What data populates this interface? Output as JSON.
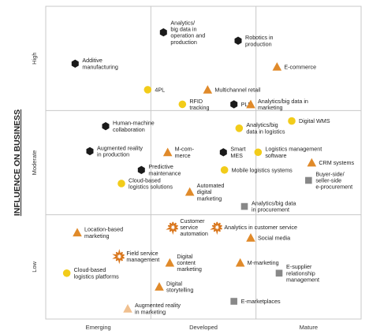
{
  "chart_data": {
    "type": "scatter",
    "ylabel": "INFLUENCE ON BUSINESS",
    "xlabel": "",
    "x_ticks": [
      "Emerging",
      "Developed",
      "Mature"
    ],
    "y_ticks": [
      "High",
      "Moderate",
      "Low"
    ],
    "colors": {
      "hexagon": "#1a1a1a",
      "circle": "#f2cc1a",
      "triangle": "#e08a2a",
      "triangle_light": "#f0c08f",
      "star": "#d9761c",
      "square": "#888888",
      "grid": "#c8c8c8"
    },
    "points": [
      {
        "label": [
          "Additive",
          "manufacturing"
        ],
        "shape": "hexagon",
        "x": 0.28,
        "y": 2.45
      },
      {
        "label": [
          "Analytics/",
          "big data in",
          "operation and",
          "production"
        ],
        "shape": "hexagon",
        "x": 1.12,
        "y": 2.75
      },
      {
        "label": [
          "Robotics in",
          "production"
        ],
        "shape": "hexagon",
        "x": 1.83,
        "y": 2.67
      },
      {
        "label": [
          "E-commerce"
        ],
        "shape": "triangle",
        "x": 2.2,
        "y": 2.42
      },
      {
        "label": [
          "4PL"
        ],
        "shape": "circle",
        "x": 0.97,
        "y": 2.2
      },
      {
        "label": [
          "Multichannel retail"
        ],
        "shape": "triangle",
        "x": 1.54,
        "y": 2.2
      },
      {
        "label": [
          "RFID",
          "tracking"
        ],
        "shape": "circle",
        "x": 1.3,
        "y": 2.06
      },
      {
        "label": [
          "PLM"
        ],
        "shape": "hexagon",
        "x": 1.79,
        "y": 2.06
      },
      {
        "label": [
          "Analytics/big data in",
          "marketing"
        ],
        "shape": "triangle",
        "x": 1.95,
        "y": 2.06
      },
      {
        "label": [
          "Digital WMS"
        ],
        "shape": "circle",
        "x": 2.34,
        "y": 1.9
      },
      {
        "label": [
          "Human-machine",
          "collaboration"
        ],
        "shape": "hexagon",
        "x": 0.57,
        "y": 1.85
      },
      {
        "label": [
          "Analytics/big",
          "data in logistics"
        ],
        "shape": "circle",
        "x": 1.84,
        "y": 1.83
      },
      {
        "label": [
          "Augmented reality",
          "in production"
        ],
        "shape": "hexagon",
        "x": 0.42,
        "y": 1.61
      },
      {
        "label": [
          "M-com-",
          "merce"
        ],
        "shape": "triangle",
        "x": 1.16,
        "y": 1.6
      },
      {
        "label": [
          "Smart",
          "MES"
        ],
        "shape": "hexagon",
        "x": 1.69,
        "y": 1.6
      },
      {
        "label": [
          "Logistics management",
          "software"
        ],
        "shape": "circle",
        "x": 2.02,
        "y": 1.6
      },
      {
        "label": [
          "CRM systems"
        ],
        "shape": "triangle",
        "x": 2.53,
        "y": 1.5
      },
      {
        "label": [
          "Predictive",
          "maintenance"
        ],
        "shape": "hexagon",
        "x": 0.91,
        "y": 1.43
      },
      {
        "label": [
          "Mobile logistics systems"
        ],
        "shape": "circle",
        "x": 1.7,
        "y": 1.43
      },
      {
        "label": [
          "Buyer-side/",
          "seller-side",
          "e-procurement"
        ],
        "shape": "square",
        "x": 2.5,
        "y": 1.33
      },
      {
        "label": [
          "Cloud-based",
          "logistics solutions"
        ],
        "shape": "circle",
        "x": 0.72,
        "y": 1.3
      },
      {
        "label": [
          "Automated",
          "digital",
          "marketing"
        ],
        "shape": "triangle",
        "x": 1.37,
        "y": 1.22
      },
      {
        "label": [
          "Analytics/big data",
          "in procurement"
        ],
        "shape": "square",
        "x": 1.89,
        "y": 1.08
      },
      {
        "label": [
          "Location-based",
          "marketing"
        ],
        "shape": "triangle",
        "x": 0.3,
        "y": 0.83
      },
      {
        "label": [
          "Customer",
          "service",
          "automation"
        ],
        "shape": "star",
        "x": 1.21,
        "y": 0.88
      },
      {
        "label": [
          "Analytics in customer service"
        ],
        "shape": "star",
        "x": 1.63,
        "y": 0.88
      },
      {
        "label": [
          "Social media"
        ],
        "shape": "triangle",
        "x": 1.95,
        "y": 0.78
      },
      {
        "label": [
          "Field service",
          "management"
        ],
        "shape": "star",
        "x": 0.7,
        "y": 0.6
      },
      {
        "label": [
          "Digital",
          "content",
          "marketing"
        ],
        "shape": "triangle",
        "x": 1.18,
        "y": 0.54
      },
      {
        "label": [
          "M-marketing"
        ],
        "shape": "triangle",
        "x": 1.85,
        "y": 0.54
      },
      {
        "label": [
          "Cloud-based",
          "logistics platforms"
        ],
        "shape": "circle",
        "x": 0.2,
        "y": 0.44
      },
      {
        "label": [
          "E-supplier",
          "relationship",
          "management"
        ],
        "shape": "square",
        "x": 2.22,
        "y": 0.44
      },
      {
        "label": [
          "Digital",
          "storytelling"
        ],
        "shape": "triangle",
        "x": 1.08,
        "y": 0.31
      },
      {
        "label": [
          "E-marketplaces"
        ],
        "shape": "square",
        "x": 1.79,
        "y": 0.17
      },
      {
        "label": [
          "Augmented reality",
          "in marketing"
        ],
        "shape": "triangle_light",
        "x": 0.78,
        "y": 0.1
      }
    ]
  }
}
